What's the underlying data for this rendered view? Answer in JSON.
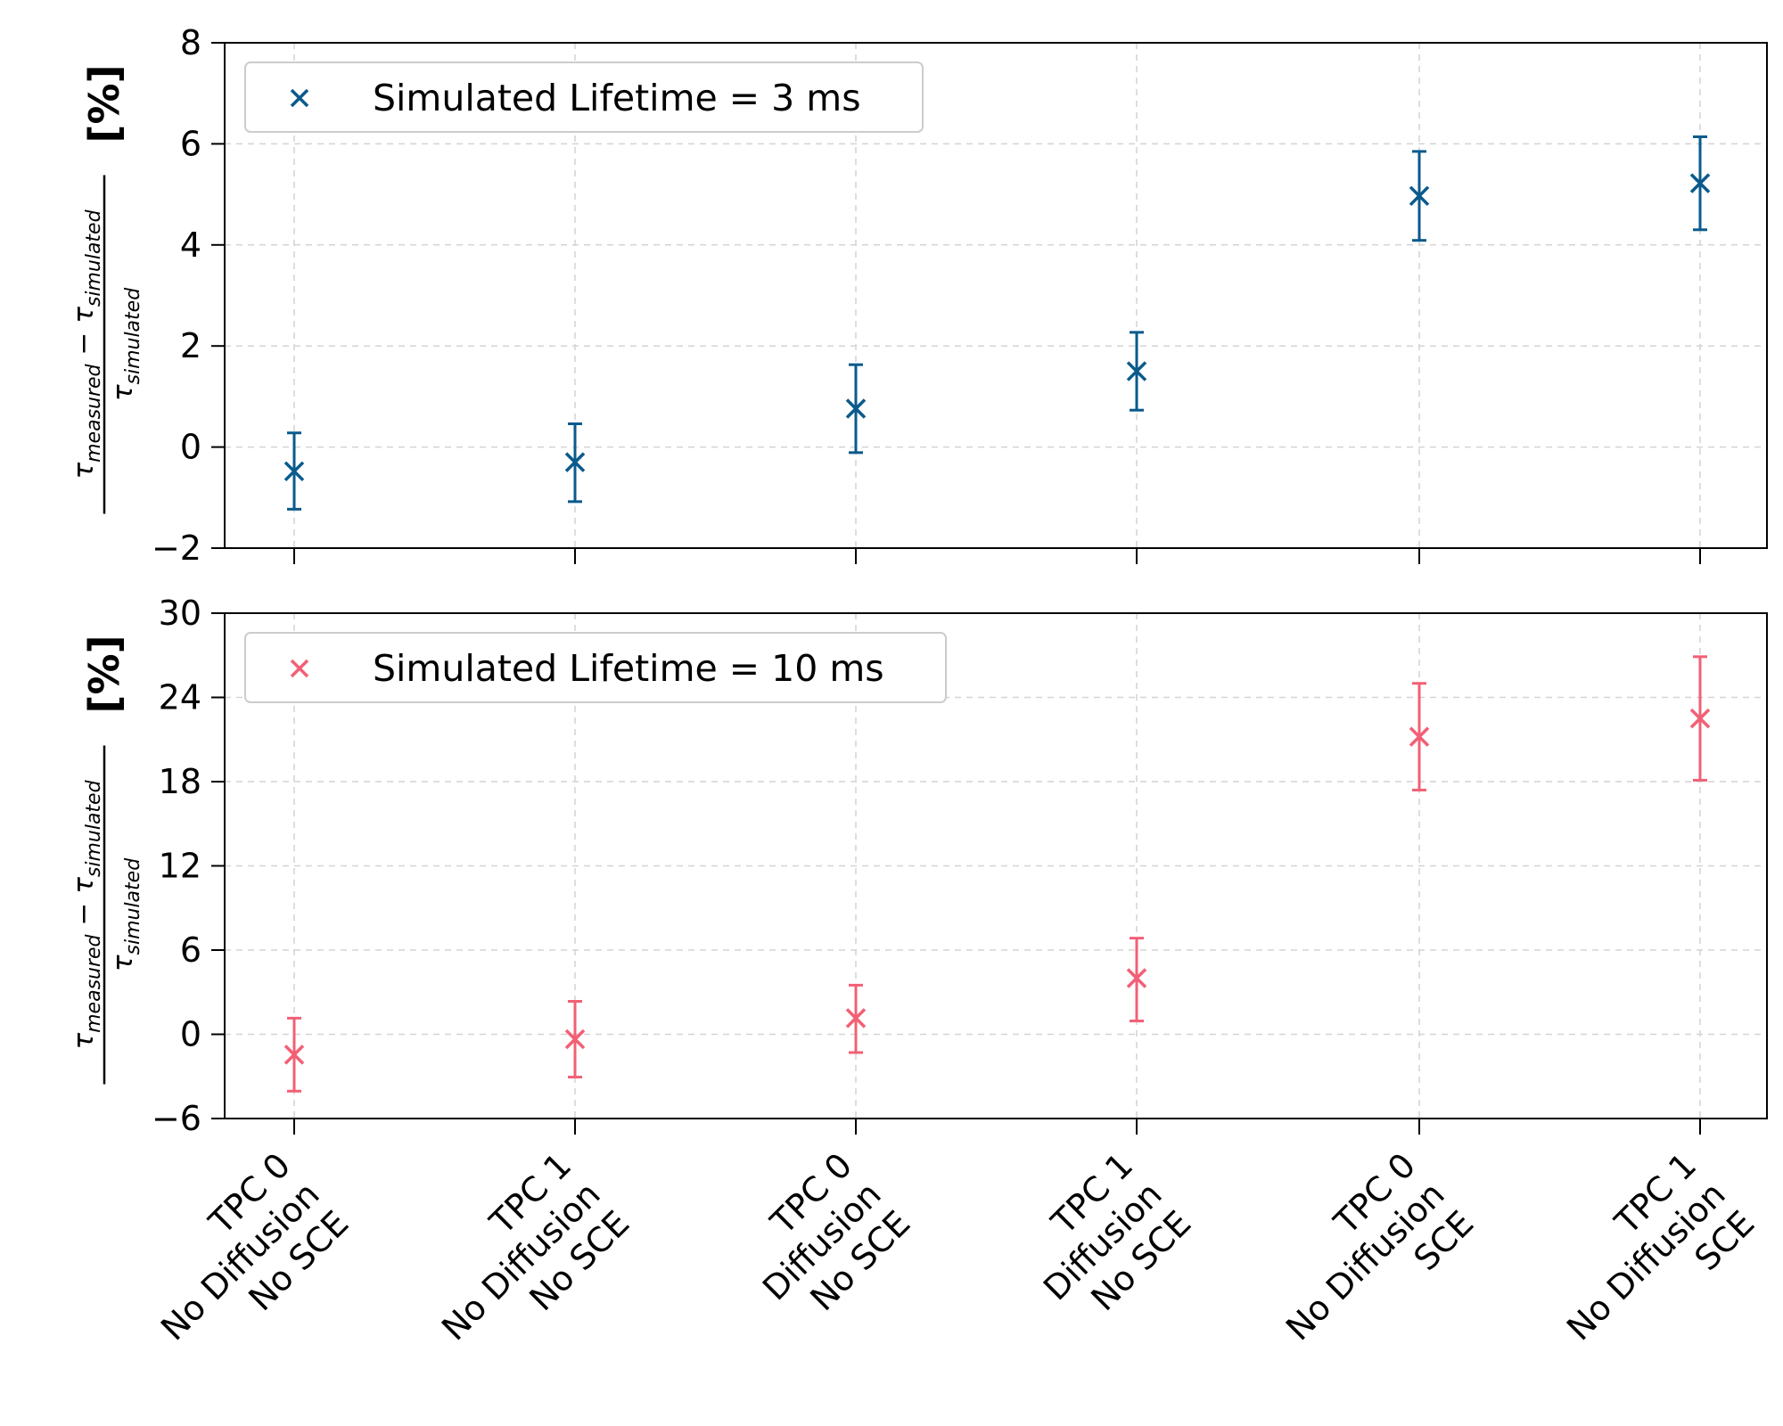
{
  "chart_data": {
    "type": "scatter",
    "categories": [
      [
        "TPC 0",
        "No Diffusion",
        "No SCE"
      ],
      [
        "TPC 1",
        "No Diffusion",
        "No SCE"
      ],
      [
        "TPC 0",
        "Diffusion",
        "No SCE"
      ],
      [
        "TPC 1",
        "Diffusion",
        "No SCE"
      ],
      [
        "TPC 0",
        "No Diffusion",
        "SCE"
      ],
      [
        "TPC 1",
        "No Diffusion",
        "SCE"
      ]
    ],
    "ylabel": {
      "tau": "τ",
      "measured": "measured",
      "simulated": "simulated",
      "minus": "−",
      "unit": "[%]"
    },
    "panels": [
      {
        "legend": "Simulated Lifetime = 3 ms",
        "color": "#0a5a8c",
        "ylim": [
          -2,
          8
        ],
        "yticks": [
          -2,
          0,
          2,
          4,
          6,
          8
        ],
        "ytick_labels": [
          "−2",
          "0",
          "2",
          "4",
          "6",
          "8"
        ],
        "values": [
          -0.48,
          -0.3,
          0.76,
          1.5,
          4.97,
          5.22
        ],
        "err_low": [
          -1.23,
          -1.08,
          -0.11,
          0.73,
          4.09,
          4.3
        ],
        "err_high": [
          0.28,
          0.46,
          1.63,
          2.27,
          5.85,
          6.14
        ],
        "grid": true,
        "legend_position": "top-left"
      },
      {
        "legend": "Simulated Lifetime = 10 ms",
        "color": "#f26075",
        "ylim": [
          -6,
          30
        ],
        "yticks": [
          -6,
          0,
          6,
          12,
          18,
          24,
          30
        ],
        "ytick_labels": [
          "−6",
          "0",
          "6",
          "12",
          "18",
          "24",
          "30"
        ],
        "values": [
          -1.45,
          -0.35,
          1.15,
          4.0,
          21.2,
          22.5
        ],
        "err_low": [
          -4.05,
          -3.05,
          -1.3,
          0.95,
          17.4,
          18.1
        ],
        "err_high": [
          1.15,
          2.35,
          3.5,
          6.85,
          25.0,
          26.9
        ],
        "grid": true,
        "legend_position": "top-left"
      }
    ]
  }
}
